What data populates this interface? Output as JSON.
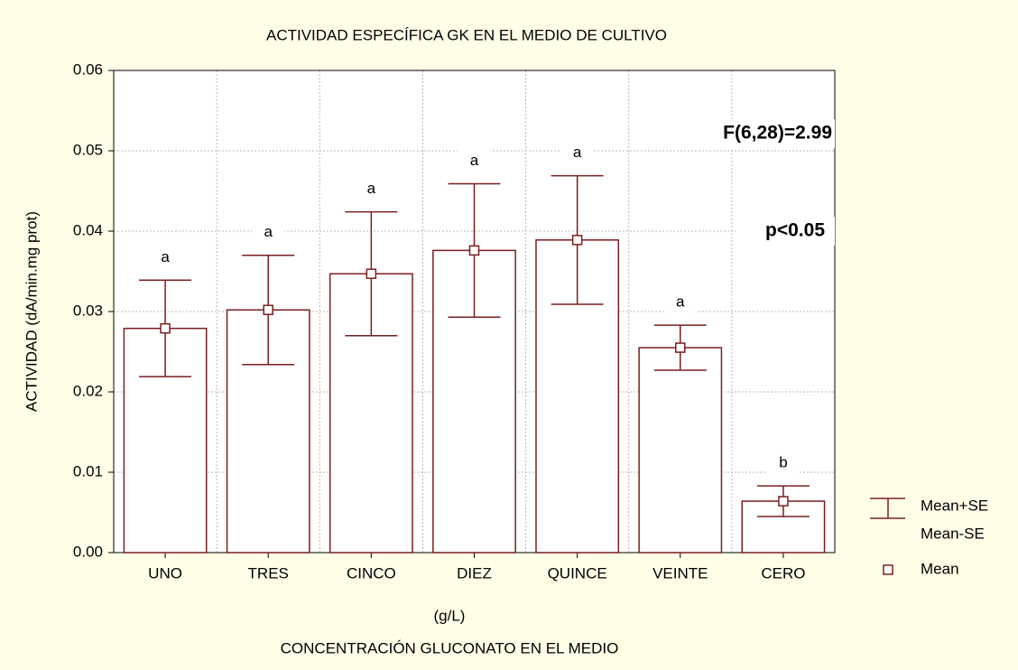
{
  "chart_data": {
    "type": "bar",
    "title": "ACTIVIDAD ESPECÍFICA GK EN EL MEDIO DE CULTIVO",
    "y_label": "ACTIVIDAD (dA/min.mg prot)",
    "x_label": "(g/L)",
    "x_label_2": "CONCENTRACIÓN GLUCONATO EN EL MEDIO",
    "categories": [
      "UNO",
      "TRES",
      "CINCO",
      "DIEZ",
      "QUINCE",
      "VEINTE",
      "CERO"
    ],
    "values": [
      0.0279,
      0.0302,
      0.0347,
      0.0376,
      0.0389,
      0.0255,
      0.0064
    ],
    "errors": [
      0.006,
      0.0068,
      0.0077,
      0.0083,
      0.008,
      0.0028,
      0.0019
    ],
    "letters": [
      "a",
      "a",
      "a",
      "a",
      "a",
      "a",
      "b"
    ],
    "annotations": [
      "F(6,28)=2.99",
      "p<0.05"
    ],
    "legend": [
      "Mean+SE",
      "Mean-SE",
      "Mean"
    ],
    "color": "#7a1e1e",
    "ylim": [
      0,
      0.06
    ],
    "yticks": [
      {
        "value": 0,
        "label": "0.00"
      },
      0.01,
      0.02,
      0.03,
      0.04,
      0.05,
      0.06
    ],
    "grid": true
  }
}
